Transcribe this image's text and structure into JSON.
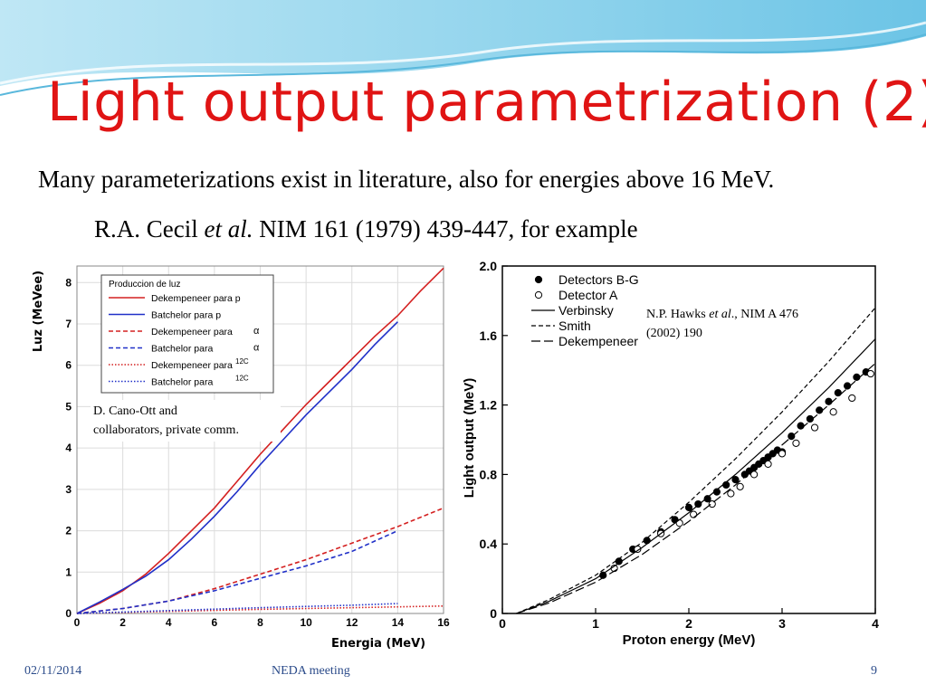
{
  "slide": {
    "title": "Light output parametrization (2)",
    "line1": "Many parameterizations exist in literature, also for energies above 16 MeV.",
    "line2_a": "R.A. Cecil ",
    "line2_em": "et al.",
    "line2_b": " NIM 161 (1979) 439-447, for example"
  },
  "footer": {
    "date": "02/11/2014",
    "meeting": "NEDA meeting",
    "page": "9"
  },
  "left_chart": {
    "annotation_1": "D. Cano-Ott and",
    "annotation_2": "collaborators, private comm."
  },
  "right_chart": {
    "citation_a": "N.P. Hawks ",
    "citation_em": "et al",
    "citation_b": "., NIM A 476",
    "citation_2": "(2002) 190"
  },
  "chart_data": [
    {
      "type": "line",
      "legend_title": "Produccion de luz",
      "xlabel": "Energia (MeV)",
      "ylabel": "Luz (MeVee)",
      "xlim": [
        0,
        16
      ],
      "ylim": [
        0,
        8.4
      ],
      "x_ticks": [
        "0",
        "2",
        "4",
        "6",
        "8",
        "10",
        "12",
        "14",
        "16"
      ],
      "y_ticks": [
        "0",
        "1",
        "2",
        "3",
        "4",
        "5",
        "6",
        "7",
        "8"
      ],
      "grid": true,
      "legend_position": "top-left",
      "series": [
        {
          "name": "Dekempeneer para p",
          "color": "#d42020",
          "dash": "solid",
          "x": [
            0,
            1,
            2,
            3,
            4,
            5,
            6,
            7,
            8,
            9,
            10,
            11,
            12,
            13,
            14,
            15,
            16
          ],
          "y": [
            0,
            0.25,
            0.55,
            0.95,
            1.45,
            2.0,
            2.55,
            3.2,
            3.85,
            4.45,
            5.05,
            5.6,
            6.15,
            6.7,
            7.2,
            7.8,
            8.35
          ]
        },
        {
          "name": "Batchelor para p",
          "color": "#2030c8",
          "dash": "solid",
          "x": [
            0,
            1,
            2,
            3,
            4,
            5,
            6,
            7,
            8,
            9,
            10,
            11,
            12,
            13,
            14
          ],
          "y": [
            0,
            0.28,
            0.58,
            0.9,
            1.3,
            1.8,
            2.35,
            2.95,
            3.6,
            4.2,
            4.8,
            5.35,
            5.9,
            6.5,
            7.05
          ]
        },
        {
          "name": "Dekempeneer para",
          "name_sup": "α",
          "color": "#d42020",
          "dash": "dashed",
          "x": [
            0,
            2,
            4,
            6,
            8,
            10,
            12,
            14,
            16
          ],
          "y": [
            0,
            0.12,
            0.3,
            0.6,
            0.95,
            1.3,
            1.7,
            2.1,
            2.55
          ]
        },
        {
          "name": "Batchelor para",
          "name_sup": "α",
          "color": "#2030c8",
          "dash": "dashed",
          "x": [
            0,
            2,
            4,
            6,
            8,
            10,
            12,
            14
          ],
          "y": [
            0,
            0.12,
            0.3,
            0.55,
            0.85,
            1.15,
            1.5,
            2.0
          ]
        },
        {
          "name": "Dekempeneer para",
          "name_sup": "12C",
          "color": "#d42020",
          "dash": "dotted",
          "x": [
            0,
            4,
            8,
            12,
            16
          ],
          "y": [
            0,
            0.05,
            0.1,
            0.14,
            0.18
          ]
        },
        {
          "name": "Batchelor para",
          "name_sup": "12C",
          "color": "#2030c8",
          "dash": "dotted",
          "x": [
            0,
            4,
            8,
            12,
            14
          ],
          "y": [
            0,
            0.07,
            0.14,
            0.2,
            0.24
          ]
        }
      ]
    },
    {
      "type": "scatter",
      "xlabel": "Proton energy (MeV)",
      "ylabel": "Light output (MeV)",
      "xlim": [
        0,
        4
      ],
      "ylim": [
        0,
        2.0
      ],
      "x_ticks": [
        "0",
        "1",
        "2",
        "3",
        "4"
      ],
      "y_ticks": [
        "0",
        "0.4",
        "0.8",
        "1.2",
        "1.6",
        "2.0"
      ],
      "legend_position": "top-left",
      "legend": [
        "Detectors B-G",
        "Detector A",
        "Verbinsky",
        "Smith",
        "Dekempeneer"
      ],
      "series": [
        {
          "name": "Detectors B-G",
          "marker": "filled-circle",
          "x": [
            1.08,
            1.25,
            1.4,
            1.55,
            1.7,
            1.85,
            2.0,
            2.1,
            2.2,
            2.3,
            2.4,
            2.5,
            2.6,
            2.65,
            2.7,
            2.75,
            2.8,
            2.85,
            2.9,
            2.95,
            3.0,
            3.1,
            3.2,
            3.3,
            3.4,
            3.5,
            3.6,
            3.7,
            3.8,
            3.9
          ],
          "y": [
            0.22,
            0.3,
            0.37,
            0.42,
            0.47,
            0.54,
            0.61,
            0.63,
            0.66,
            0.7,
            0.74,
            0.77,
            0.8,
            0.82,
            0.84,
            0.86,
            0.88,
            0.9,
            0.92,
            0.94,
            0.93,
            1.02,
            1.08,
            1.12,
            1.17,
            1.22,
            1.27,
            1.31,
            1.36,
            1.39
          ]
        },
        {
          "name": "Detector A",
          "marker": "open-circle",
          "x": [
            1.2,
            1.45,
            1.7,
            1.9,
            2.05,
            2.25,
            2.45,
            2.55,
            2.7,
            2.85,
            3.0,
            3.15,
            3.35,
            3.55,
            3.75,
            3.95
          ],
          "y": [
            0.26,
            0.37,
            0.46,
            0.52,
            0.57,
            0.63,
            0.69,
            0.73,
            0.8,
            0.86,
            0.92,
            0.98,
            1.07,
            1.16,
            1.24,
            1.38
          ]
        },
        {
          "name": "Verbinsky",
          "dash": "solid",
          "x": [
            0.15,
            0.5,
            1,
            1.5,
            2,
            2.5,
            3,
            3.5,
            4
          ],
          "y": [
            0,
            0.07,
            0.2,
            0.38,
            0.58,
            0.8,
            1.04,
            1.3,
            1.58
          ]
        },
        {
          "name": "Smith",
          "dash": "dashed",
          "x": [
            0.15,
            0.5,
            1,
            1.5,
            2,
            2.5,
            3,
            3.5,
            4
          ],
          "y": [
            0,
            0.08,
            0.22,
            0.41,
            0.64,
            0.89,
            1.16,
            1.45,
            1.76
          ]
        },
        {
          "name": "Dekempeneer",
          "dash": "long-dash",
          "x": [
            0.15,
            0.5,
            1,
            1.5,
            2,
            2.5,
            3,
            3.5,
            4
          ],
          "y": [
            0,
            0.06,
            0.18,
            0.34,
            0.53,
            0.74,
            0.97,
            1.2,
            1.44
          ]
        }
      ]
    }
  ]
}
